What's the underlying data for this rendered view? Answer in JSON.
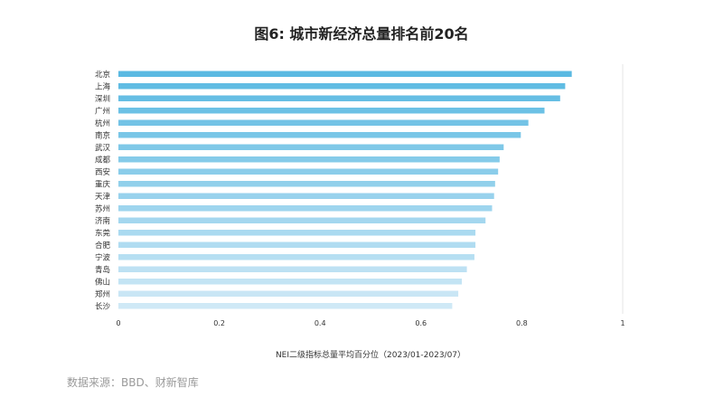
{
  "chart_data": {
    "type": "bar",
    "orientation": "horizontal",
    "title": "图6: 城市新经济总量排名前20名",
    "xlabel": "NEI二级指标总量平均百分位（2023/01-2023/07）",
    "ylabel": "",
    "xlim": [
      0,
      1
    ],
    "x_ticks": [
      "0",
      "0.2",
      "0.4",
      "0.6",
      "0.8",
      "1"
    ],
    "grid": "vertical line at 1 only",
    "categories": [
      "北京",
      "上海",
      "深圳",
      "广州",
      "杭州",
      "南京",
      "武汉",
      "成都",
      "西安",
      "重庆",
      "天津",
      "苏州",
      "济南",
      "东莞",
      "合肥",
      "宁波",
      "青岛",
      "佛山",
      "郑州",
      "长沙"
    ],
    "values": [
      0.899,
      0.886,
      0.876,
      0.845,
      0.813,
      0.798,
      0.764,
      0.756,
      0.753,
      0.747,
      0.745,
      0.741,
      0.728,
      0.708,
      0.708,
      0.706,
      0.691,
      0.681,
      0.674,
      0.662
    ],
    "colors": {
      "top": "#5ab9e2",
      "bottom": "#cfe9f6"
    }
  },
  "footer": {
    "source": "数据来源：BBD、财新智库"
  }
}
